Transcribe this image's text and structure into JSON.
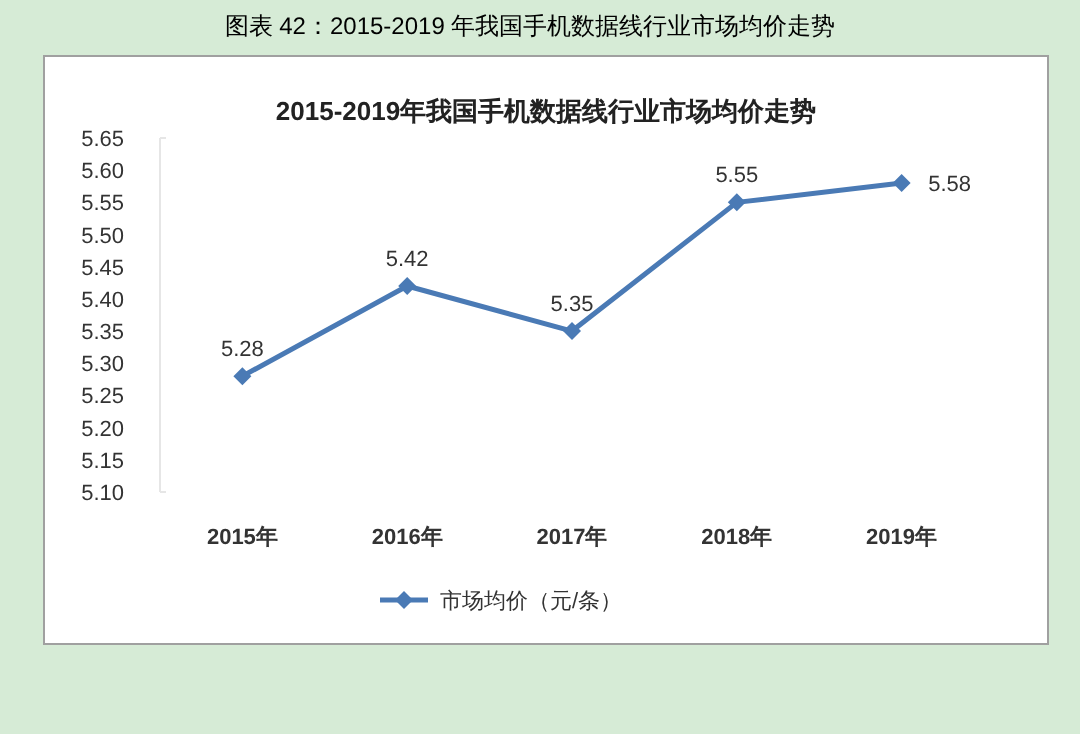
{
  "chart_data": {
    "type": "line",
    "title": "2015-2019年我国手机数据线行业市场均价走势",
    "subtitle": "图表 42：2015-2019 年我国手机数据线行业市场均价走势",
    "categories": [
      "2015年",
      "2016年",
      "2017年",
      "2018年",
      "2019年"
    ],
    "series": [
      {
        "name": "市场均价（元/条）",
        "color": "#4a7ab5",
        "values": [
          5.28,
          5.42,
          5.35,
          5.55,
          5.58
        ]
      }
    ],
    "ylim": [
      5.1,
      5.65
    ],
    "yticks": [
      "5.10",
      "5.15",
      "5.20",
      "5.25",
      "5.30",
      "5.35",
      "5.40",
      "5.45",
      "5.50",
      "5.55",
      "5.60",
      "5.65"
    ],
    "data_labels": true,
    "legend": "bottom",
    "marker": "diamond",
    "line_style": "solid",
    "grid": false
  }
}
